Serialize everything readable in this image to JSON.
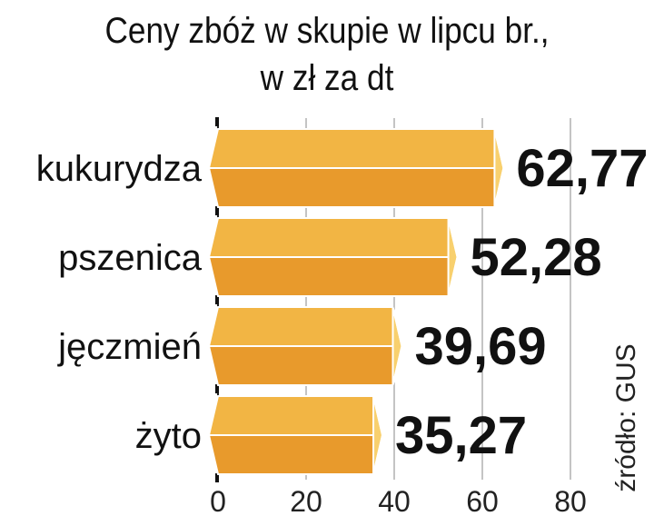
{
  "chart_data": {
    "type": "bar",
    "orientation": "horizontal",
    "title": "Ceny zbóż w skupie w lipcu br.,\nw zł za dt",
    "categories": [
      "kukurydza",
      "pszenica",
      "jęczmień",
      "żyto"
    ],
    "values": [
      62.77,
      52.28,
      39.69,
      35.27
    ],
    "value_labels": [
      "62,77",
      "52,28",
      "39,69",
      "35,27"
    ],
    "xlim": [
      0,
      80
    ],
    "xticks": [
      0,
      20,
      40,
      60,
      80
    ],
    "xtick_labels": [
      "0",
      "20",
      "40",
      "60",
      "80"
    ],
    "grid": true,
    "bar_colors": {
      "top": "#F2B544",
      "bottom": "#E89A2C",
      "end": "#F8D06E",
      "edge": "#FFFFFF"
    },
    "source": "źródło: GUS"
  }
}
